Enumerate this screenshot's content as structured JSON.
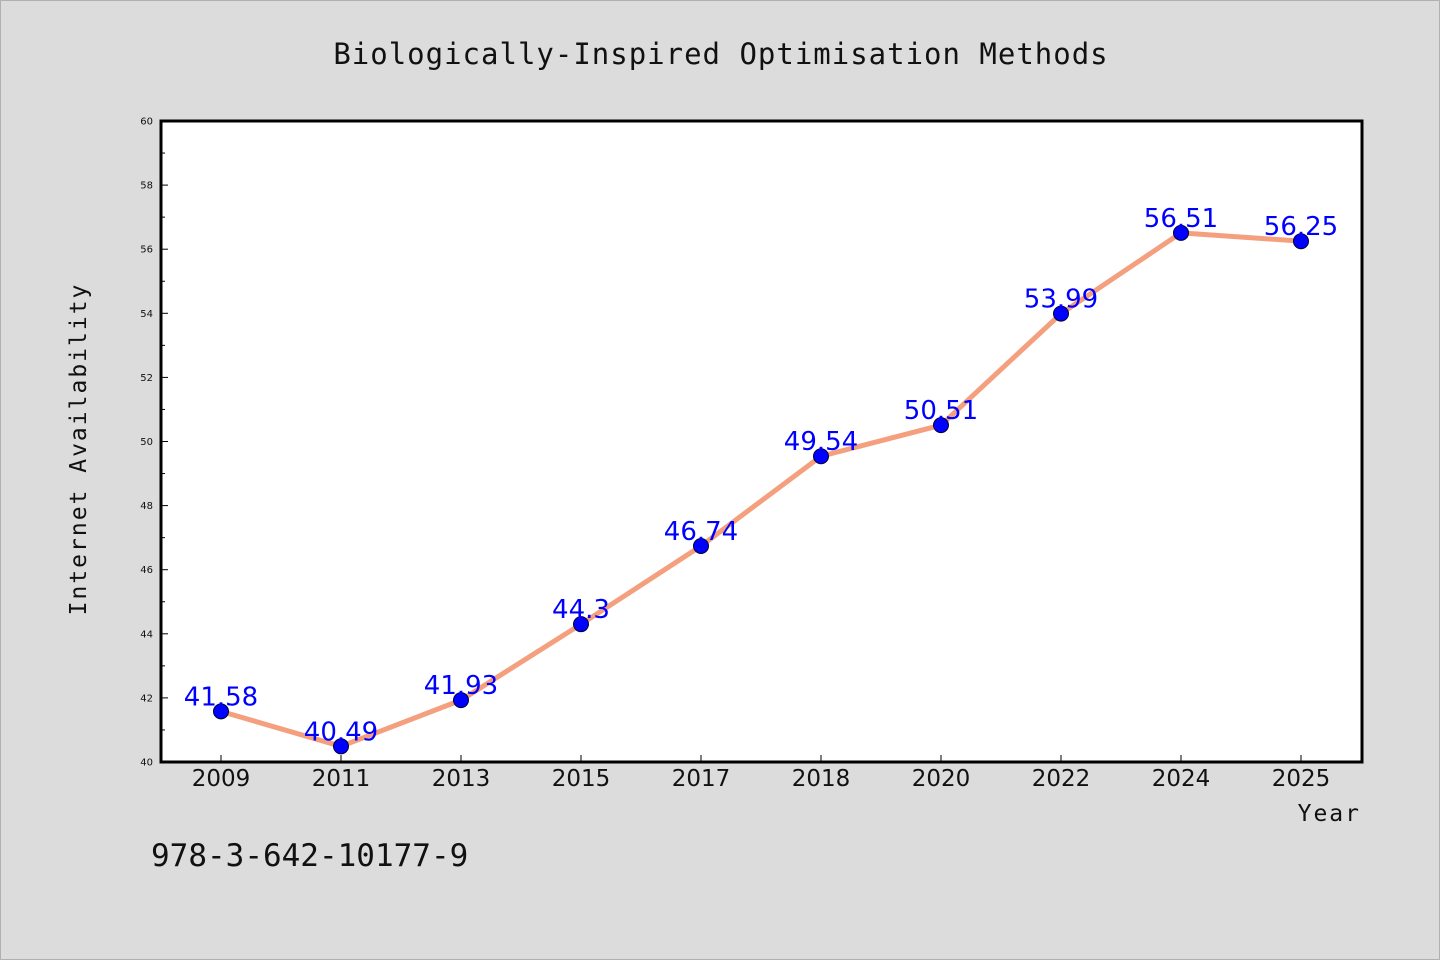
{
  "chart_data": {
    "type": "line",
    "title": "Biologically-Inspired Optimisation Methods",
    "xlabel": "Year",
    "ylabel": "Internet Availability",
    "categories": [
      "2009",
      "2011",
      "2013",
      "2015",
      "2017",
      "2018",
      "2020",
      "2022",
      "2024",
      "2025"
    ],
    "series": [
      {
        "values": [
          41.58,
          40.49,
          41.93,
          44.3,
          46.74,
          49.54,
          50.51,
          53.99,
          56.51,
          56.25
        ],
        "labels": [
          "41.58",
          "40.49",
          "41.93",
          "44.3",
          "46.74",
          "49.54",
          "50.51",
          "53.99",
          "56.51",
          "56.25"
        ]
      }
    ],
    "ylim": [
      40,
      60
    ],
    "yticks": [
      40,
      42,
      44,
      46,
      48,
      50,
      52,
      54,
      56,
      58,
      60
    ],
    "grid": false,
    "colors": {
      "line": "#f4a07e",
      "marker": "#0000ff",
      "data_label": "#0000ff",
      "plot_background": "#ffffff",
      "figure_background": "#dcdcdc"
    }
  },
  "footer": {
    "text": "978-3-642-10177-9"
  }
}
